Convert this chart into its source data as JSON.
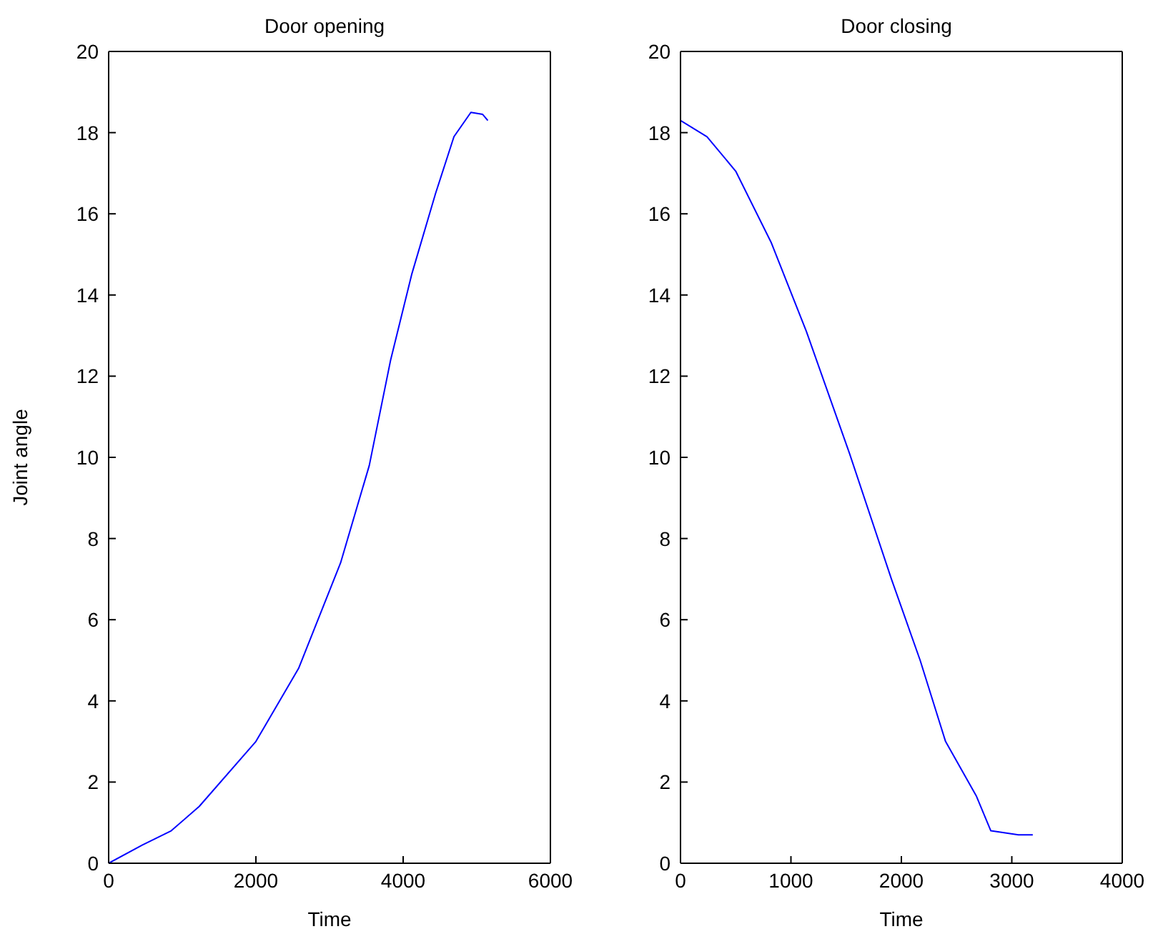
{
  "chart_data": [
    {
      "type": "line",
      "title": "Door opening",
      "xlabel": "Time",
      "ylabel": "Joint angle",
      "xlim": [
        0,
        6000
      ],
      "xticks": [
        0,
        2000,
        4000,
        6000
      ],
      "ylim": [
        0,
        20
      ],
      "yticks": [
        0,
        2,
        4,
        6,
        8,
        10,
        12,
        14,
        16,
        18,
        20
      ],
      "legend": false,
      "marker": "none",
      "line_style": "solid",
      "series": [
        {
          "color": "#0000ff",
          "x": [
            0,
            460,
            850,
            1230,
            2000,
            2580,
            3150,
            3540,
            3830,
            4115,
            4440,
            4690,
            4920,
            5080,
            5150
          ],
          "values": [
            0,
            0.45,
            0.8,
            1.4,
            3.0,
            4.8,
            7.4,
            9.8,
            12.4,
            14.5,
            16.5,
            17.9,
            18.5,
            18.45,
            18.3
          ]
        }
      ]
    },
    {
      "type": "line",
      "title": "Door closing",
      "xlabel": "Time",
      "xlim": [
        0,
        4000
      ],
      "xticks": [
        0,
        1000,
        2000,
        3000,
        4000
      ],
      "ylim": [
        0,
        20
      ],
      "yticks": [
        0,
        2,
        4,
        6,
        8,
        10,
        12,
        14,
        16,
        18,
        20
      ],
      "legend": false,
      "marker": "none",
      "line_style": "solid",
      "series": [
        {
          "color": "#0000ff",
          "x": [
            0,
            240,
            500,
            820,
            1140,
            1530,
            1910,
            2170,
            2400,
            2680,
            2810,
            3060,
            3190
          ],
          "values": [
            18.3,
            17.9,
            17.05,
            15.3,
            13.1,
            10.1,
            7.0,
            5.0,
            3.0,
            1.65,
            0.8,
            0.7,
            0.7
          ]
        }
      ]
    }
  ]
}
